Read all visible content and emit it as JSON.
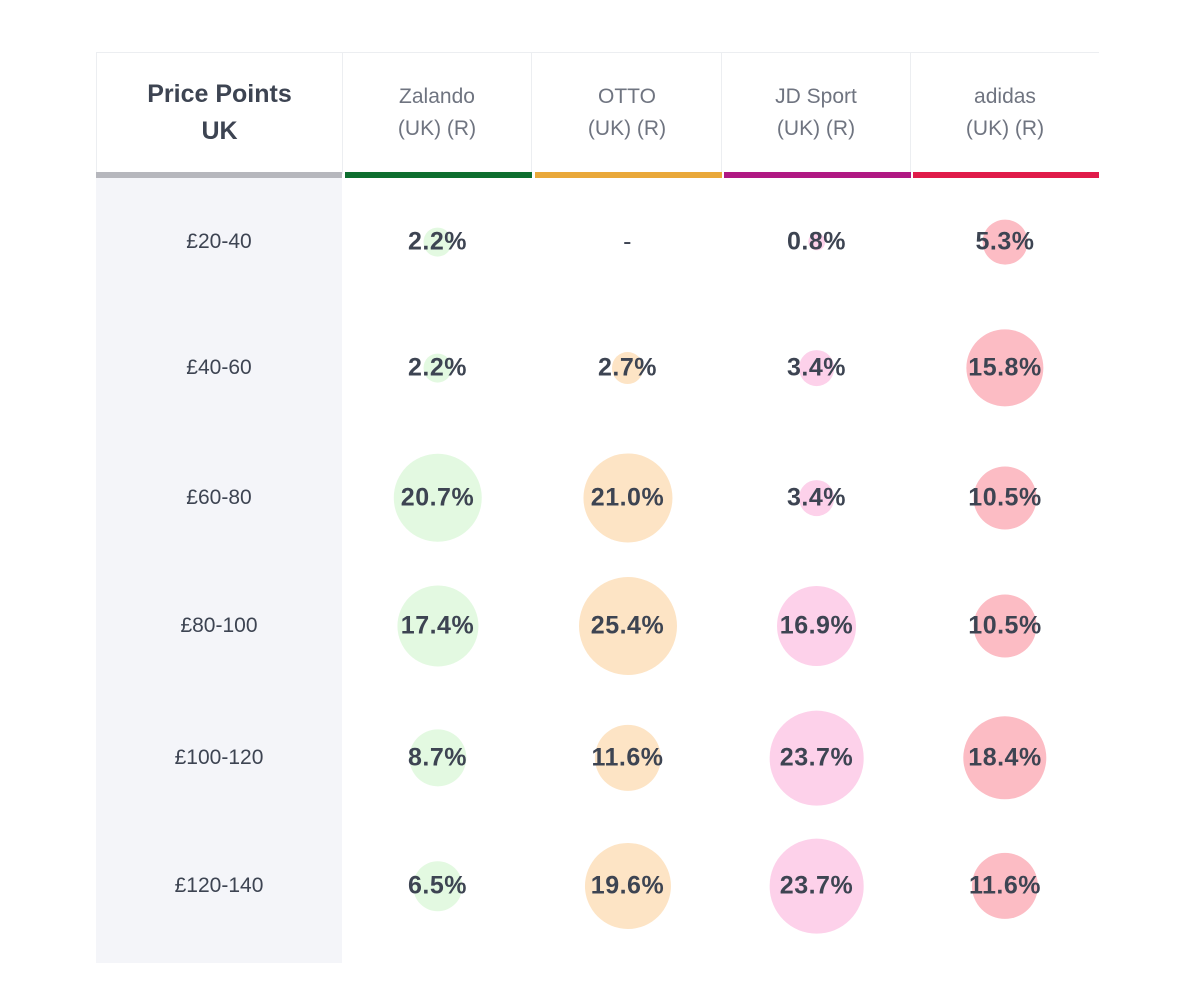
{
  "header": {
    "label_col_title_line1": "Price Points",
    "label_col_title_line2": "UK"
  },
  "colors": {
    "label_col_accent": "#b6b7bd",
    "text": "#3d4452"
  },
  "empty_value": "-",
  "chart_data": {
    "type": "table",
    "title": "Price Points UK",
    "categories": [
      "£20-40",
      "£40-60",
      "£60-80",
      "£80-100",
      "£100-120",
      "£120-140"
    ],
    "series": [
      {
        "name": "Zalando",
        "sub": "(UK) (R)",
        "accent": "#0e6e2f",
        "bubble_color": "#e3f9e1",
        "values": [
          2.2,
          2.2,
          20.7,
          17.4,
          8.7,
          6.5
        ],
        "labels": [
          "2.2%",
          "2.2%",
          "20.7%",
          "17.4%",
          "8.7%",
          "6.5%"
        ]
      },
      {
        "name": "OTTO",
        "sub": "(UK) (R)",
        "accent": "#e9a83a",
        "bubble_color": "#fde4c5",
        "values": [
          null,
          2.7,
          21.0,
          25.4,
          11.6,
          19.6
        ],
        "labels": [
          "-",
          "2.7%",
          "21.0%",
          "25.4%",
          "11.6%",
          "19.6%"
        ]
      },
      {
        "name": "JD Sport",
        "sub": "(UK) (R)",
        "accent": "#b01883",
        "bubble_color": "#fdd1ea",
        "values": [
          0.8,
          3.4,
          3.4,
          16.9,
          23.7,
          23.7
        ],
        "labels": [
          "0.8%",
          "3.4%",
          "3.4%",
          "16.9%",
          "23.7%",
          "23.7%"
        ]
      },
      {
        "name": "adidas",
        "sub": "(UK) (R)",
        "accent": "#e01b4a",
        "bubble_color": "#fcbcc4",
        "values": [
          5.3,
          15.8,
          10.5,
          10.5,
          18.4,
          11.6
        ],
        "labels": [
          "5.3%",
          "15.8%",
          "10.5%",
          "10.5%",
          "18.4%",
          "11.6%"
        ]
      }
    ]
  }
}
